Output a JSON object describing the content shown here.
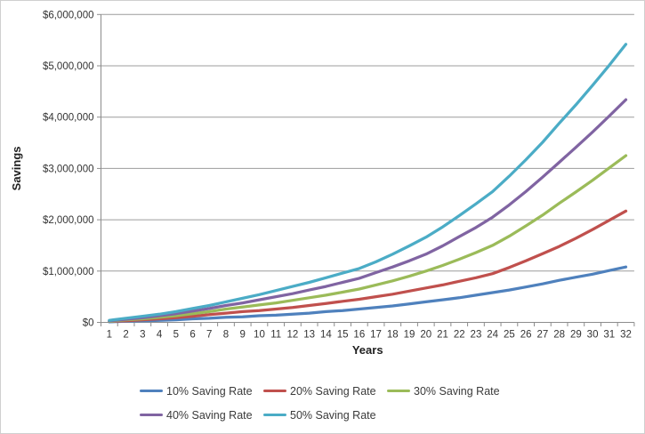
{
  "chart_data": {
    "type": "line",
    "title": "",
    "xlabel": "Years",
    "ylabel": "Savings",
    "grid": true,
    "legend_position": "bottom",
    "x": [
      1,
      2,
      3,
      4,
      5,
      6,
      7,
      8,
      9,
      10,
      11,
      12,
      13,
      14,
      15,
      16,
      17,
      18,
      19,
      20,
      21,
      22,
      23,
      24,
      25,
      26,
      27,
      28,
      29,
      30,
      31,
      32
    ],
    "x_tick_labels": [
      "1",
      "2",
      "3",
      "4",
      "5",
      "6",
      "7",
      "8",
      "9",
      "10",
      "11",
      "12",
      "13",
      "14",
      "15",
      "16",
      "17",
      "18",
      "19",
      "20",
      "21",
      "22",
      "23",
      "24",
      "25",
      "26",
      "27",
      "28",
      "29",
      "30",
      "31",
      "32"
    ],
    "y_axis": {
      "min": 0,
      "max": 6000000,
      "step": 1000000,
      "tick_labels": [
        "$0",
        "$1,000,000",
        "$2,000,000",
        "$3,000,000",
        "$4,000,000",
        "$5,000,000",
        "$6,000,000"
      ]
    },
    "series": [
      {
        "name": "10% Saving Rate",
        "color": "#4F81BD",
        "values": [
          10000,
          20000,
          30000,
          40000,
          50000,
          70000,
          80000,
          100000,
          110000,
          130000,
          140000,
          160000,
          180000,
          210000,
          230000,
          260000,
          290000,
          320000,
          360000,
          400000,
          440000,
          480000,
          530000,
          580000,
          630000,
          690000,
          750000,
          820000,
          880000,
          940000,
          1010000,
          1080000
        ]
      },
      {
        "name": "20% Saving Rate",
        "color": "#C0504D",
        "values": [
          20000,
          30000,
          50000,
          70000,
          90000,
          120000,
          150000,
          180000,
          210000,
          230000,
          260000,
          290000,
          330000,
          370000,
          410000,
          450000,
          500000,
          550000,
          610000,
          670000,
          730000,
          800000,
          870000,
          950000,
          1070000,
          1200000,
          1340000,
          1480000,
          1640000,
          1810000,
          1990000,
          2170000
        ]
      },
      {
        "name": "30% Saving Rate",
        "color": "#9BBB59",
        "values": [
          20000,
          50000,
          70000,
          100000,
          130000,
          170000,
          210000,
          260000,
          300000,
          340000,
          380000,
          430000,
          480000,
          530000,
          590000,
          650000,
          730000,
          810000,
          900000,
          1000000,
          1110000,
          1230000,
          1360000,
          1500000,
          1680000,
          1880000,
          2090000,
          2320000,
          2540000,
          2770000,
          3010000,
          3250000
        ]
      },
      {
        "name": "40% Saving Rate",
        "color": "#8064A2",
        "values": [
          30000,
          60000,
          90000,
          130000,
          170000,
          220000,
          270000,
          330000,
          380000,
          440000,
          500000,
          560000,
          630000,
          700000,
          780000,
          860000,
          970000,
          1080000,
          1200000,
          1330000,
          1490000,
          1670000,
          1850000,
          2050000,
          2290000,
          2550000,
          2830000,
          3120000,
          3410000,
          3710000,
          4020000,
          4340000
        ]
      },
      {
        "name": "50% Saving Rate",
        "color": "#4BACC6",
        "values": [
          40000,
          80000,
          120000,
          160000,
          210000,
          270000,
          330000,
          400000,
          470000,
          540000,
          620000,
          700000,
          780000,
          870000,
          960000,
          1050000,
          1180000,
          1330000,
          1490000,
          1660000,
          1860000,
          2080000,
          2310000,
          2550000,
          2850000,
          3170000,
          3510000,
          3880000,
          4240000,
          4620000,
          5010000,
          5420000
        ]
      }
    ]
  },
  "styles": {
    "background": "#FFFFFF",
    "window_border": "#CFCFCF",
    "gridline_color": "#9C9C9C",
    "axis_color": "#8C8C8C",
    "tick_text_color": "#333333",
    "axis_title_color": "#1F1F1F",
    "legend_text_color": "#3A3A3A"
  }
}
